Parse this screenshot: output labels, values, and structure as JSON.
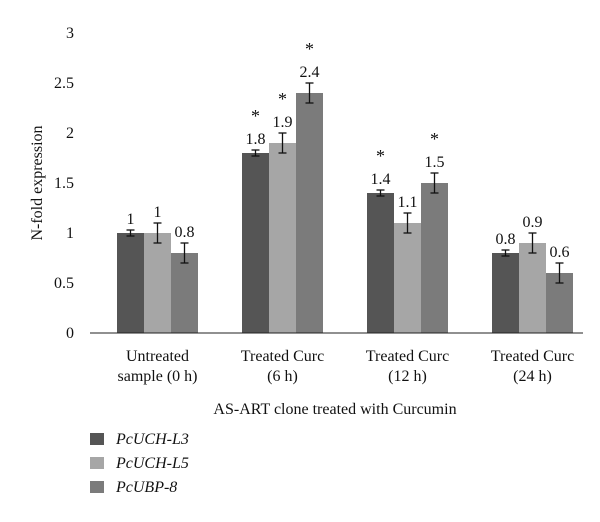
{
  "chart_data": {
    "type": "bar",
    "xlabel": "AS-ART clone treated with Curcumin",
    "ylabel": "N-fold expression",
    "ylim": [
      0,
      3
    ],
    "yticks": [
      "0",
      "0.5",
      "1",
      "1.5",
      "2",
      "2.5",
      "3"
    ],
    "grid": false,
    "legend_position": "bottom-left",
    "categories": [
      [
        "Untreated",
        "sample (0 h)"
      ],
      [
        "Treated Curc",
        "(6 h)"
      ],
      [
        "Treated Curc",
        "(12 h)"
      ],
      [
        "Treated Curc",
        "(24 h)"
      ]
    ],
    "series": [
      {
        "name": "PcUCH-L3",
        "color": "#555555",
        "values": [
          1,
          1.8,
          1.4,
          0.8
        ],
        "errors": [
          0.03,
          0.03,
          0.03,
          0.03
        ],
        "labels": [
          "1",
          "1.8",
          "1.4",
          "0.8"
        ],
        "significant": [
          false,
          true,
          true,
          false
        ]
      },
      {
        "name": "PcUCH-L5",
        "color": "#a6a6a6",
        "values": [
          1,
          1.9,
          1.1,
          0.9
        ],
        "errors": [
          0.1,
          0.1,
          0.1,
          0.1
        ],
        "labels": [
          "1",
          "1.9",
          "1.1",
          "0.9"
        ],
        "significant": [
          false,
          true,
          false,
          false
        ]
      },
      {
        "name": "PcUBP-8",
        "color": "#7b7b7b",
        "values": [
          0.8,
          2.4,
          1.5,
          0.6
        ],
        "errors": [
          0.1,
          0.1,
          0.1,
          0.1
        ],
        "labels": [
          "0.8",
          "2.4",
          "1.5",
          "0.6"
        ],
        "significant": [
          false,
          true,
          true,
          false
        ]
      }
    ],
    "significance_marker": "*"
  }
}
